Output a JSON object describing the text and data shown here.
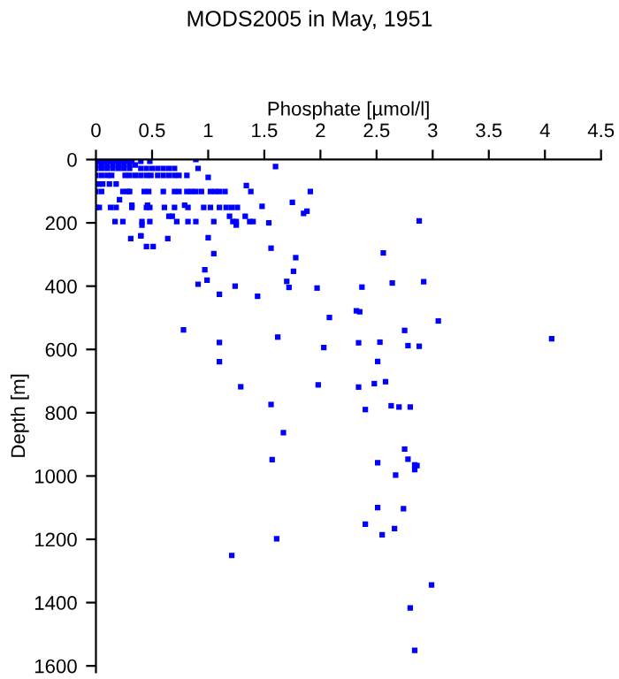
{
  "chart_data": {
    "type": "scatter",
    "title": "MODS2005 in May, 1951",
    "xlabel": "Phosphate [µmol/l]",
    "ylabel": "Depth [m]",
    "xlim": [
      0,
      4.5
    ],
    "xticks": [
      0,
      0.5,
      1,
      1.5,
      2,
      2.5,
      3,
      3.5,
      4,
      4.5
    ],
    "ylim": [
      1620,
      0
    ],
    "yticks": [
      0,
      200,
      400,
      600,
      800,
      1000,
      1200,
      1400,
      1600
    ],
    "grid": false,
    "legend": false,
    "marker": "square",
    "series": [
      {
        "color": "#0000ff",
        "x": [
          0,
          0.04,
          0.08,
          0.12,
          0.16,
          0.2,
          0.24,
          0.28,
          0.32,
          0.4,
          0.48,
          0.89,
          0,
          0.05,
          0.1,
          0.15,
          0.2,
          0.25,
          0.3,
          0.35,
          0,
          0.05,
          0.1,
          0.15,
          0.2,
          0.25,
          0.3,
          0.4,
          0.45,
          0.5,
          0.55,
          0.6,
          0.65,
          0.7,
          0.91,
          0,
          0.05,
          0.1,
          0.14,
          0.26,
          0.3,
          0.35,
          0.4,
          0.45,
          0.49,
          0.55,
          0.6,
          0.65,
          0.7,
          0.74,
          0.81,
          1.0,
          0,
          0.03,
          0.06,
          0.12,
          0.18,
          0,
          0.05,
          0.24,
          0.28,
          0.3,
          0.43,
          0.47,
          0.6,
          0.7,
          0.74,
          0.81,
          0.85,
          0.89,
          0.94,
          1.02,
          1.06,
          1.1,
          1.15,
          1.34,
          1.38,
          1.91,
          0.21,
          0.32,
          0.46,
          0.79,
          0,
          0.03,
          0.13,
          0.18,
          0.32,
          0.45,
          0.48,
          0.61,
          0.7,
          0.82,
          0.96,
          1.02,
          1.1,
          1.16,
          1.21,
          1.26,
          1.48,
          0.65,
          0.68,
          1.19,
          1.33,
          0.17,
          0.24,
          0.41,
          0.48,
          0.72,
          0.82,
          0.89,
          1.05,
          1.22,
          1.25,
          1.37,
          1.4,
          1.54,
          0.41,
          1.25,
          0.31,
          0.4,
          0.64,
          0.45,
          0.51,
          0.4,
          1.6,
          1.75,
          1.88,
          1.85,
          1.0,
          1.05,
          1.56,
          1.78,
          1.76,
          0.97,
          0.99,
          0.91,
          1.1,
          1.24,
          1.44,
          1.7,
          1.72,
          1.97,
          2.08,
          0.78,
          1.62,
          2.03,
          1.1,
          1.1,
          1.29,
          1.98,
          1.56,
          1.67,
          1.57,
          1.61,
          1.21,
          2.88,
          2.56,
          2.64,
          2.92,
          2.37,
          2.32,
          2.35,
          3.05,
          2.75,
          4.06,
          2.53,
          2.78,
          2.88,
          2.34,
          2.51,
          2.58,
          2.48,
          2.34,
          2.63,
          2.7,
          2.8,
          2.4,
          2.75,
          2.78,
          2.51,
          2.84,
          2.86,
          2.84,
          2.67,
          2.51,
          2.74,
          2.4,
          2.55,
          2.66,
          2.99,
          2.8,
          2.84
        ],
        "values": [
          5,
          5,
          5,
          5,
          5,
          5,
          5,
          5,
          5,
          5,
          5,
          0,
          17,
          17,
          17,
          17,
          17,
          17,
          17,
          17,
          28,
          28,
          28,
          28,
          28,
          28,
          28,
          28,
          28,
          28,
          28,
          28,
          28,
          28,
          28,
          50,
          50,
          50,
          50,
          50,
          50,
          50,
          50,
          50,
          50,
          50,
          50,
          50,
          50,
          50,
          50,
          56,
          77,
          77,
          77,
          77,
          77,
          101,
          101,
          101,
          101,
          101,
          101,
          101,
          101,
          101,
          101,
          101,
          101,
          101,
          101,
          101,
          101,
          101,
          101,
          82,
          101,
          101,
          127,
          144,
          144,
          144,
          151,
          151,
          151,
          151,
          151,
          151,
          151,
          151,
          151,
          151,
          151,
          151,
          151,
          151,
          151,
          151,
          148,
          179,
          179,
          179,
          179,
          196,
          196,
          196,
          196,
          196,
          196,
          196,
          196,
          196,
          196,
          196,
          196,
          200,
          207,
          207,
          250,
          241,
          250,
          275,
          275,
          241,
          22,
          135,
          163,
          170,
          247,
          297,
          280,
          310,
          353,
          348,
          381,
          394,
          426,
          400,
          432,
          385,
          404,
          406,
          499,
          538,
          561,
          594,
          578,
          639,
          718,
          712,
          774,
          863,
          948,
          1198,
          1251,
          194,
          295,
          390,
          386,
          403,
          478,
          481,
          510,
          540,
          566,
          577,
          588,
          590,
          579,
          638,
          702,
          708,
          719,
          778,
          782,
          782,
          790,
          915,
          947,
          958,
          965,
          967,
          980,
          997,
          1100,
          1103,
          1152,
          1186,
          1166,
          1344,
          1417,
          1551
        ]
      }
    ]
  }
}
